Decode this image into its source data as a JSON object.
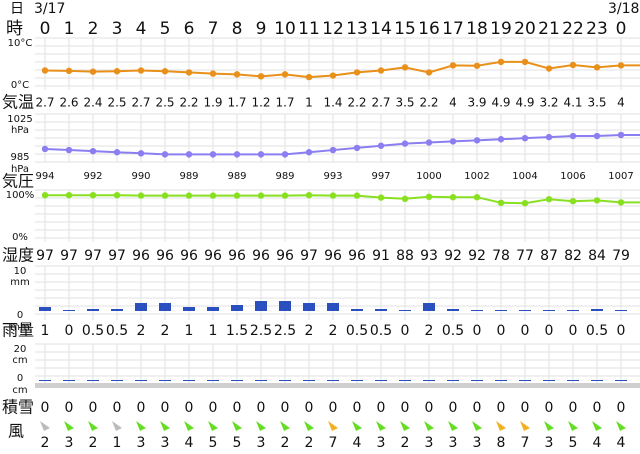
{
  "header": {
    "date_label": "日",
    "date_start": "3/17",
    "date_end": "3/18",
    "hour_label": "時",
    "hours": [
      0,
      1,
      2,
      3,
      4,
      5,
      6,
      7,
      8,
      9,
      10,
      11,
      12,
      13,
      14,
      15,
      16,
      17,
      18,
      19,
      20,
      21,
      22,
      23,
      0
    ]
  },
  "temperature": {
    "type": "line",
    "label": "気温",
    "color": "#e8901a",
    "ylim": [
      0,
      10
    ],
    "yticks": [
      {
        "value": 10,
        "label": "10°C"
      },
      {
        "value": 0,
        "label": "0°C"
      }
    ],
    "values": [
      2.7,
      2.6,
      2.4,
      2.5,
      2.7,
      2.5,
      2.2,
      1.9,
      1.7,
      1.2,
      1.7,
      1,
      1.4,
      2.2,
      2.7,
      3.5,
      2.2,
      4,
      3.9,
      4.9,
      4.9,
      3.2,
      4.1,
      3.5,
      4
    ]
  },
  "pressure": {
    "type": "line",
    "label": "気圧",
    "color": "#8a7ef0",
    "unit": "hPa",
    "ylim": [
      985,
      1025
    ],
    "yticks": [
      1025,
      985
    ],
    "values": [
      994,
      993,
      992,
      991,
      990,
      989,
      989,
      989,
      989,
      989,
      989,
      991,
      993,
      995,
      997,
      999,
      1000,
      1001,
      1002,
      1003,
      1004,
      1005,
      1006,
      1006,
      1007
    ]
  },
  "humidity": {
    "type": "line",
    "label": "湿度",
    "color": "#88e020",
    "ylim": [
      0,
      100
    ],
    "yticks": [
      {
        "value": 100,
        "label": "100%"
      },
      {
        "value": 0,
        "label": "0%"
      }
    ],
    "values": [
      97,
      97,
      97,
      97,
      96,
      96,
      96,
      96,
      96,
      96,
      96,
      97,
      96,
      96,
      91,
      88,
      93,
      92,
      92,
      78,
      77,
      87,
      82,
      84,
      79
    ]
  },
  "rain": {
    "type": "bar",
    "label": "雨量",
    "color": "#2a4fbf",
    "unit": "mm",
    "ylim": [
      0,
      10
    ],
    "yticks": [
      10,
      0
    ],
    "values": [
      1,
      0,
      0.5,
      0.5,
      2,
      2,
      1,
      1,
      1.5,
      2.5,
      2.5,
      2,
      2,
      0.5,
      0.5,
      0,
      2,
      0.5,
      0,
      0,
      0,
      0,
      0,
      0.5,
      0
    ]
  },
  "snow": {
    "type": "bar",
    "label": "積雪",
    "color": "#2a4fbf",
    "unit": "cm",
    "ylim": [
      0,
      20
    ],
    "yticks": [
      20,
      0
    ],
    "values": [
      0,
      0,
      0,
      0,
      0,
      0,
      0,
      0,
      0,
      0,
      0,
      0,
      0,
      0,
      0,
      0,
      0,
      0,
      0,
      0,
      0,
      0,
      0,
      0,
      0
    ]
  },
  "wind": {
    "label": "風",
    "colors": {
      "calm": "#bbbbbb",
      "normal": "#66dd22",
      "strong": "#f0b020"
    },
    "values": [
      2,
      3,
      2,
      1,
      3,
      3,
      4,
      5,
      5,
      3,
      2,
      2,
      7,
      4,
      3,
      2,
      3,
      3,
      3,
      8,
      7,
      3,
      5,
      4,
      4
    ]
  }
}
